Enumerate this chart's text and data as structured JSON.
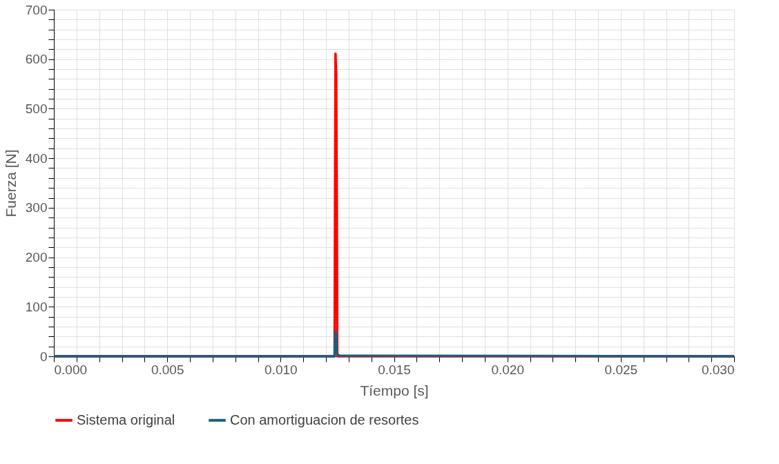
{
  "chart_data": {
    "type": "line",
    "xlabel": "Tíempo [s]",
    "ylabel": "Fuerza [N]",
    "xlim": [
      0,
      0.03
    ],
    "xticks": [
      "0.000",
      {
        "value": 0.001,
        "label": null
      },
      {
        "value": 0.002,
        "label": null
      },
      {
        "value": 0.003,
        "label": null
      },
      {
        "value": 0.004,
        "label": null
      },
      {
        "value": 0.005,
        "label": "0.005"
      },
      {
        "value": 0.006,
        "label": null
      },
      {
        "value": 0.007,
        "label": null
      },
      {
        "value": 0.008,
        "label": null
      },
      {
        "value": 0.009,
        "label": null
      },
      {
        "value": 0.01,
        "label": "0.010"
      },
      {
        "value": 0.011,
        "label": null
      },
      {
        "value": 0.012,
        "label": null
      },
      {
        "value": 0.013,
        "label": null
      },
      {
        "value": 0.014,
        "label": null
      },
      {
        "value": 0.015,
        "label": "0.015"
      },
      {
        "value": 0.016,
        "label": null
      },
      {
        "value": 0.017,
        "label": null
      },
      {
        "value": 0.018,
        "label": null
      },
      {
        "value": 0.019,
        "label": null
      },
      {
        "value": 0.02,
        "label": "0.020"
      },
      {
        "value": 0.021,
        "label": null
      },
      {
        "value": 0.022,
        "label": null
      },
      {
        "value": 0.023,
        "label": null
      },
      {
        "value": 0.024,
        "label": null
      },
      {
        "value": 0.025,
        "label": "0.025"
      },
      {
        "value": 0.026,
        "label": null
      },
      {
        "value": 0.027,
        "label": null
      },
      {
        "value": 0.028,
        "label": null
      },
      {
        "value": 0.029,
        "label": null
      },
      {
        "value": 0.03,
        "label": "0.030"
      }
    ],
    "ylim": [
      0,
      700
    ],
    "yticks": [
      0,
      {
        "value": 20,
        "label": null
      },
      {
        "value": 40,
        "label": null
      },
      {
        "value": 60,
        "label": null
      },
      {
        "value": 80,
        "label": null
      },
      100,
      {
        "value": 120,
        "label": null
      },
      {
        "value": 140,
        "label": null
      },
      {
        "value": 160,
        "label": null
      },
      {
        "value": 180,
        "label": null
      },
      200,
      {
        "value": 220,
        "label": null
      },
      {
        "value": 240,
        "label": null
      },
      {
        "value": 260,
        "label": null
      },
      {
        "value": 280,
        "label": null
      },
      300,
      {
        "value": 320,
        "label": null
      },
      {
        "value": 340,
        "label": null
      },
      {
        "value": 360,
        "label": null
      },
      {
        "value": 380,
        "label": null
      },
      400,
      {
        "value": 420,
        "label": null
      },
      {
        "value": 440,
        "label": null
      },
      {
        "value": 460,
        "label": null
      },
      {
        "value": 480,
        "label": null
      },
      500,
      {
        "value": 520,
        "label": null
      },
      {
        "value": 540,
        "label": null
      },
      {
        "value": 560,
        "label": null
      },
      {
        "value": 580,
        "label": null
      },
      600,
      {
        "value": 620,
        "label": null
      },
      {
        "value": 640,
        "label": null
      },
      {
        "value": 660,
        "label": null
      },
      {
        "value": 680,
        "label": null
      },
      700
    ],
    "grid": true,
    "legend": "bottom",
    "line_style": "solid",
    "marker": "none",
    "series": [
      {
        "name": "Sistema original",
        "color": "#ff0000",
        "x": [
          0,
          0.0123,
          0.01238,
          0.01242,
          0.01245,
          0.01248,
          0.0125,
          0.0126,
          0.03
        ],
        "values": [
          0,
          0,
          0,
          611,
          570,
          300,
          0,
          0,
          0
        ]
      },
      {
        "name": "Con amortiguacion de resortes",
        "color": "#1b5e80",
        "x": [
          0,
          0.0123,
          0.01238,
          0.01242,
          0.01248,
          0.0126,
          0.0135,
          0.0142,
          0.03
        ],
        "values": [
          0,
          0,
          0,
          50,
          5,
          1,
          1,
          1,
          0
        ]
      }
    ]
  }
}
